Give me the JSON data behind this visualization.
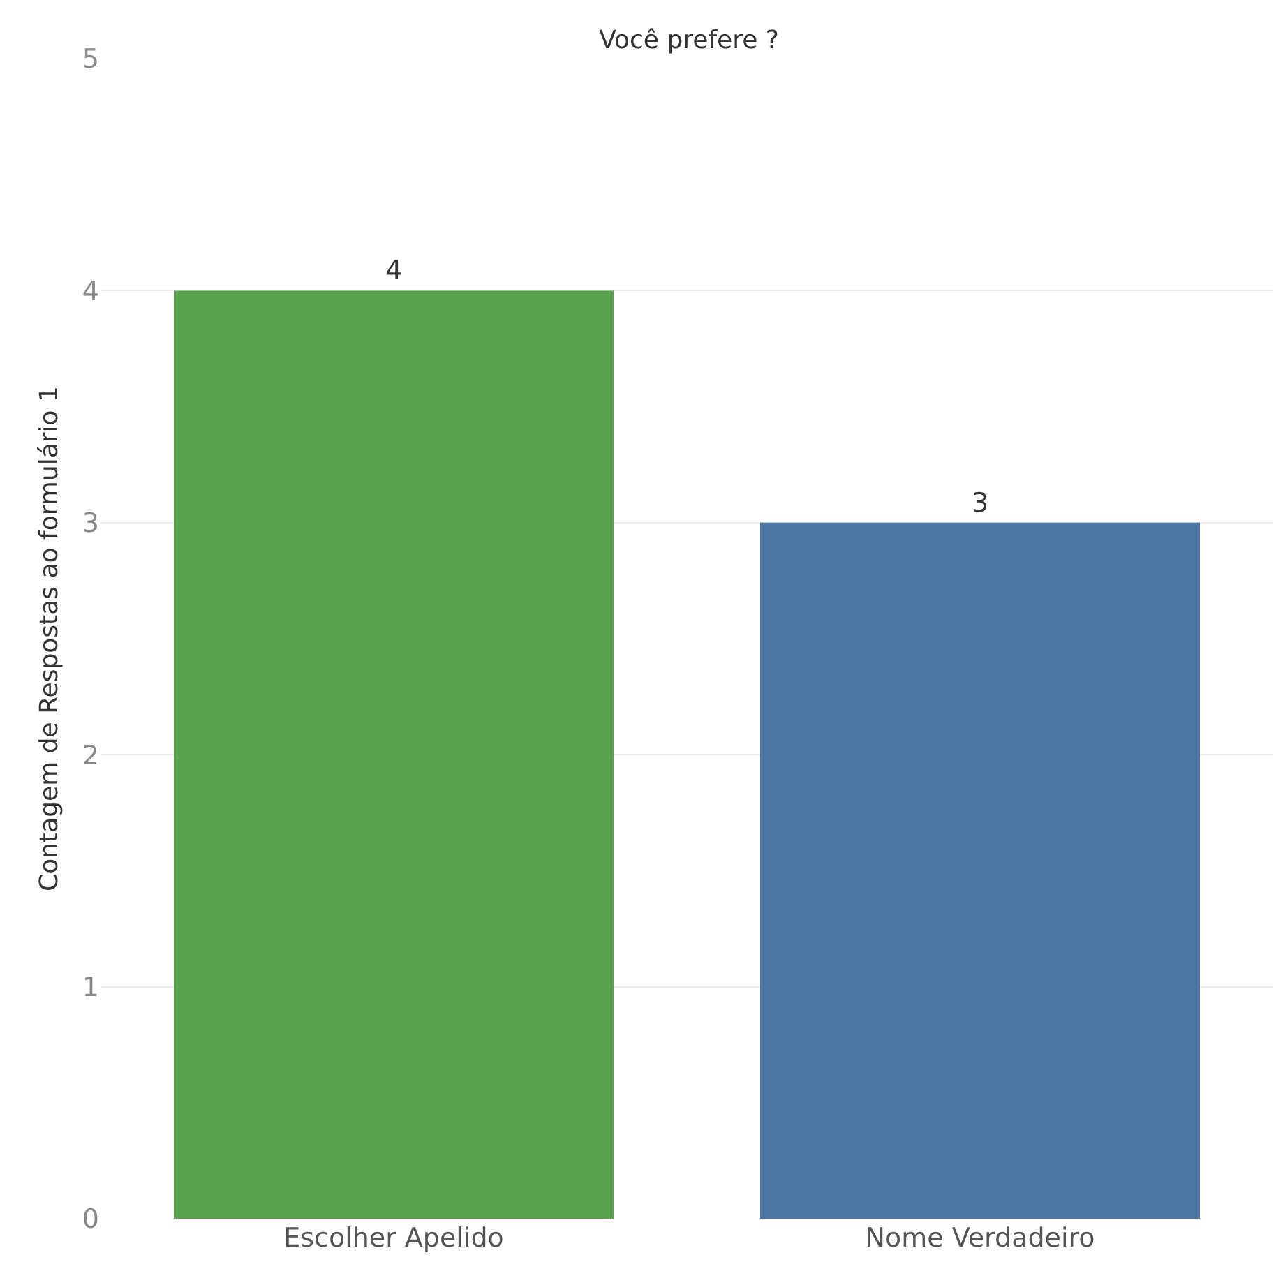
{
  "chart_data": {
    "type": "bar",
    "title": "Você prefere ?",
    "ylabel": "Contagem de Respostas ao formulário 1",
    "categories": [
      "Escolher Apelido",
      "Nome Verdadeiro"
    ],
    "values": [
      4,
      3
    ],
    "colors": [
      "#59a14f",
      "#4e79a7"
    ],
    "ylim": [
      0,
      5
    ],
    "yticks": [
      0,
      1,
      2,
      3,
      4,
      5
    ],
    "grid": "y",
    "data_labels": true
  }
}
